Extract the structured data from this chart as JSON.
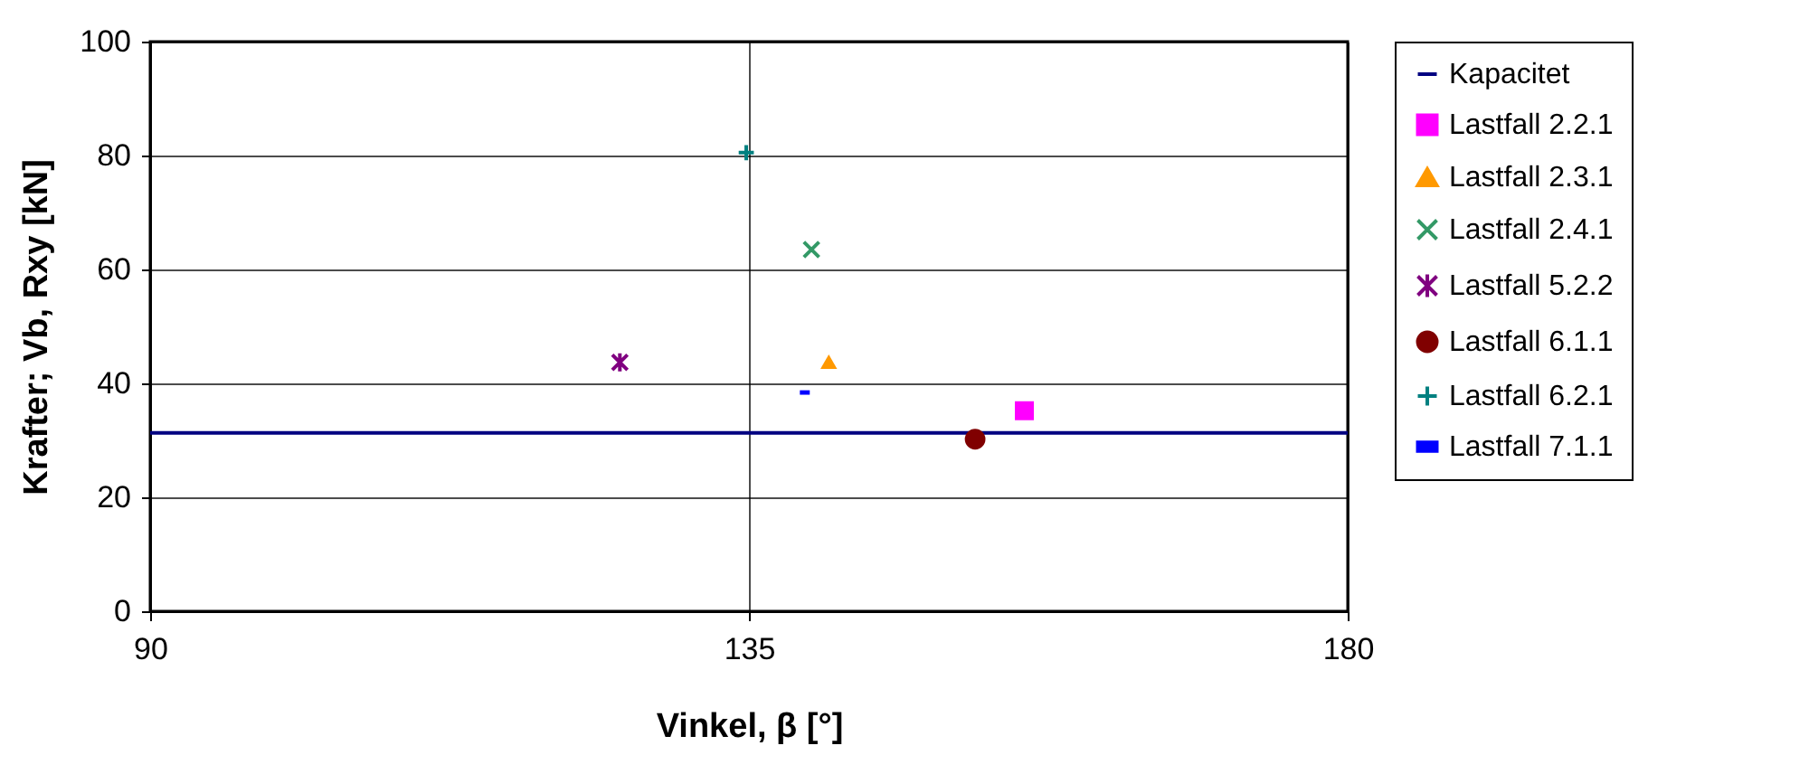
{
  "chart_data": {
    "type": "scatter",
    "xlabel": "Vinkel, β [°]",
    "ylabel": "Krafter; Vb, Rxy [kN]",
    "xlim": [
      90,
      180
    ],
    "xticks": [
      90,
      135,
      180
    ],
    "ylim": [
      0,
      100
    ],
    "yticks": [
      0,
      20,
      40,
      60,
      80,
      100
    ],
    "grid": true,
    "legend": "right",
    "series": [
      {
        "name": "Kapacitet",
        "type": "line",
        "color": "#000080",
        "x": [
          90,
          180
        ],
        "values": [
          31.3,
          31.3
        ]
      },
      {
        "name": "Lastfall 2.2.1",
        "color": "#ff00ff",
        "marker": "square",
        "x": [
          155.7
        ],
        "values": [
          35.2
        ]
      },
      {
        "name": "Lastfall 2.3.1",
        "color": "#ff9900",
        "marker": "triangle",
        "x": [
          141.0
        ],
        "values": [
          43.8
        ]
      },
      {
        "name": "Lastfall 2.4.1",
        "color": "#339966",
        "marker": "x",
        "x": [
          139.7
        ],
        "values": [
          63.5
        ]
      },
      {
        "name": "Lastfall 5.2.2",
        "color": "#800080",
        "marker": "cross",
        "x": [
          125.3
        ],
        "values": [
          43.7
        ]
      },
      {
        "name": "Lastfall 6.1.1",
        "color": "#800000",
        "marker": "circle",
        "x": [
          152.0
        ],
        "values": [
          30.2
        ]
      },
      {
        "name": "Lastfall 6.2.1",
        "color": "#008080",
        "marker": "plus",
        "x": [
          134.8
        ],
        "values": [
          80.5
        ]
      },
      {
        "name": "Lastfall 7.1.1",
        "color": "#0000ff",
        "x": [
          139.2
        ],
        "values": [
          38.4
        ]
      }
    ]
  }
}
